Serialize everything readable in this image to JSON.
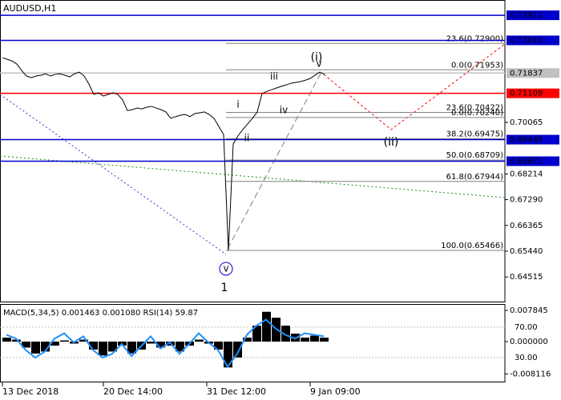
{
  "chart_data": {
    "type": "line",
    "title": "AUDUSD,H1",
    "color": "#000000",
    "x": [
      0,
      1,
      2,
      3,
      4,
      5,
      6,
      7,
      8,
      9,
      10,
      11,
      12,
      13,
      14,
      15,
      16,
      17,
      18,
      19,
      20,
      21,
      22,
      23,
      24,
      25,
      26,
      27,
      28,
      29,
      30,
      31,
      32,
      33,
      34,
      35,
      36,
      37,
      38,
      39,
      40,
      41,
      42,
      43,
      44,
      45,
      46,
      47,
      48,
      49,
      50,
      51,
      52,
      53,
      54,
      55,
      56,
      57,
      58,
      59,
      60,
      61,
      62,
      63,
      64,
      65,
      66,
      67
    ],
    "values": [
      0.7239,
      0.7233,
      0.7227,
      0.7216,
      0.7193,
      0.7173,
      0.7167,
      0.7173,
      0.7176,
      0.7181,
      0.7173,
      0.7179,
      0.7181,
      0.7176,
      0.717,
      0.7181,
      0.7187,
      0.7173,
      0.7144,
      0.7107,
      0.7113,
      0.7101,
      0.7107,
      0.7113,
      0.7107,
      0.7087,
      0.7049,
      0.7052,
      0.7058,
      0.7055,
      0.7061,
      0.7064,
      0.7058,
      0.7052,
      0.7044,
      0.7021,
      0.7027,
      0.7032,
      0.7035,
      0.7027,
      0.7038,
      0.7041,
      0.7044,
      0.7035,
      0.7021,
      0.6992,
      0.6963,
      0.6547,
      0.6929,
      0.6958,
      0.6981,
      0.7001,
      0.7021,
      0.7044,
      0.711,
      0.7118,
      0.7124,
      0.713,
      0.7136,
      0.7141,
      0.7147,
      0.715,
      0.7153,
      0.7158,
      0.7164,
      0.7176,
      0.7187,
      0.7179
    ],
    "xlim": [
      -0.5,
      104.5
    ],
    "xticks": [
      {
        "value": 0,
        "label": "13 Dec 2018"
      },
      {
        "value": 21,
        "label": "20 Dec 14:00"
      },
      {
        "value": 42.5,
        "label": "31 Dec 12:00"
      },
      {
        "value": 64,
        "label": "9 Jan 09:00"
      }
    ],
    "ylim": [
      0.636,
      0.7446
    ],
    "yticks": [
      0.64515,
      {
        "value": 0.6544,
        "label": "0.65440"
      },
      0.66365,
      {
        "value": 0.6729,
        "label": "0.67290"
      },
      0.68214,
      0.70065
    ],
    "levels": [
      {
        "value": 0.73911,
        "label": "0.73911",
        "color": "#0000cc"
      },
      {
        "value": 0.7301,
        "label": "0.73010",
        "color": "#0000cc"
      },
      {
        "value": 0.71837,
        "label": "0.71837",
        "color": "#c0c0c0"
      },
      {
        "value": 0.71109,
        "label": "0.71109",
        "color": "#ff0000"
      },
      {
        "value": 0.69445,
        "label": "0.69445",
        "color": "#0000cc"
      },
      {
        "value": 0.68671,
        "label": "0.68671",
        "color": "#0000cc"
      }
    ],
    "fib_levels": [
      {
        "value": 0.729,
        "label": "23.6(0.72900)"
      },
      {
        "value": 0.71953,
        "label": "0.0(0.71953)"
      },
      {
        "value": 0.70422,
        "label": "23.6(0.70422)"
      },
      {
        "value": 0.7024,
        "label": "0.0(0.70240)"
      },
      {
        "value": 0.69475,
        "label": "38.2(0.69475)"
      },
      {
        "value": 0.68709,
        "label": "50.0(0.68709)"
      },
      {
        "value": 0.67944,
        "label": "61.8(0.67944)"
      },
      {
        "value": 0.65466,
        "label": "100.0(0.65466)"
      }
    ],
    "annotations": [
      "(i)",
      "(ii)",
      "1",
      "v",
      "i",
      "ii",
      "iii",
      "iv",
      "v"
    ],
    "indicator": {
      "label": "MACD(5,34,5) 0.001463 0.001080 RSI(14) 59.87",
      "histogram": [
        0.001,
        0.0005,
        -0.0015,
        -0.003,
        -0.0025,
        -0.001,
        0.0003,
        -0.0005,
        0.0005,
        -0.002,
        -0.0035,
        -0.0025,
        -0.001,
        -0.003,
        -0.002,
        -0.0005,
        -0.0015,
        -0.001,
        -0.0025,
        -0.001,
        0.0005,
        -0.0005,
        -0.002,
        -0.0065,
        -0.004,
        0.001,
        0.004,
        0.0075,
        0.006,
        0.004,
        0.002,
        0.001,
        0.0015,
        0.001
      ],
      "rsi": [
        60,
        55,
        40,
        30,
        38,
        55,
        62,
        50,
        58,
        40,
        30,
        35,
        48,
        32,
        45,
        58,
        42,
        50,
        35,
        48,
        62,
        50,
        40,
        18,
        35,
        60,
        72,
        80,
        68,
        60,
        55,
        62,
        60,
        58
      ],
      "ylim": [
        -0.01026,
        0.009455
      ],
      "yticks": [
        0.007845,
        {
          "value": 0,
          "label": "0.000000"
        },
        -0.008116
      ],
      "rsi_ylim": [
        -2.6,
        100.5
      ],
      "rsi_ticks": [
        {
          "value": 70,
          "label": "70.00"
        },
        {
          "value": 30,
          "label": "30.00"
        }
      ],
      "histogram_color": "#000000",
      "rsi_color": "#1e90ff"
    }
  }
}
